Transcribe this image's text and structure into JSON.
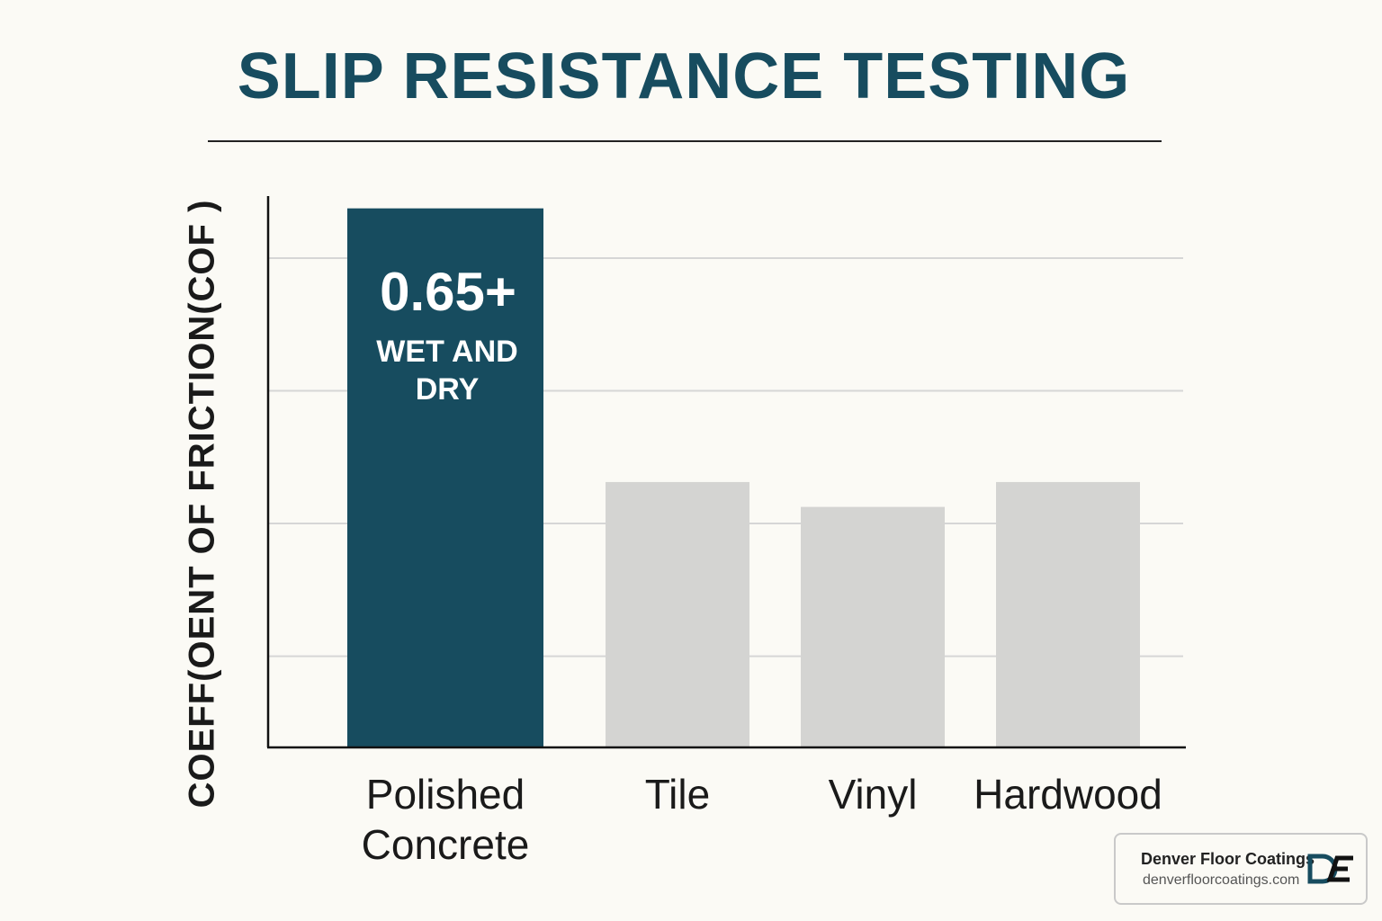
{
  "chart_data": {
    "type": "bar",
    "title": "SLIP RESISTANCE TESTING",
    "y_label": "COEFF(OENT OF FRICTION(COF )",
    "categories": [
      "Polished Concrete",
      "Tile",
      "Vinyl",
      "Hardwood"
    ],
    "values": [
      0.65,
      0.32,
      0.29,
      0.32
    ],
    "value_labels": [
      "0.65+",
      null,
      null,
      null
    ],
    "annotation": "WET AND DRY",
    "colors": [
      "#174c5f",
      "#d4d4d2",
      "#d4d4d2",
      "#d4d4d2"
    ],
    "ylim": [
      0,
      0.68
    ],
    "yticks": [
      0.11,
      0.27,
      0.43,
      0.59
    ],
    "grid": true
  },
  "brand": {
    "name": "Denver Floor Coatings",
    "url": "denverfloorcoatings.com"
  }
}
